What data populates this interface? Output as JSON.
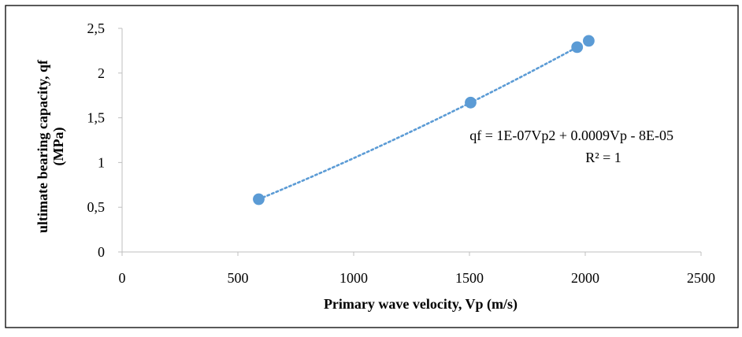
{
  "chart_data": {
    "type": "scatter",
    "title": "",
    "xlabel": "Primary wave velocity, Vp (m/s)",
    "ylabel_lines": [
      "ultimate bearing capacity, qf",
      "(MPa)"
    ],
    "xlim": [
      0,
      2500
    ],
    "ylim": [
      0,
      2.5
    ],
    "xticks": [
      0,
      500,
      1000,
      1500,
      2000,
      2500
    ],
    "xtick_labels": [
      "0",
      "500",
      "1000",
      "1500",
      "2000",
      "2500"
    ],
    "yticks": [
      0,
      0.5,
      1,
      1.5,
      2,
      2.5
    ],
    "ytick_labels": [
      "0",
      "0,5",
      "1",
      "1,5",
      "2",
      "2,5"
    ],
    "grid": false,
    "legend": "none",
    "series": [
      {
        "x": [
          590,
          1505,
          1965,
          2015
        ],
        "y": [
          0.59,
          1.67,
          2.29,
          2.36
        ],
        "color": "#5B9BD5"
      }
    ],
    "trendline": {
      "type": "polynomial",
      "degree": 2,
      "style": "dotted",
      "color": "#5B9BD5",
      "x_range": [
        590,
        1965
      ],
      "equation": "qf = 1E-07Vp2 + 0.0009Vp - 8E-05",
      "r_squared": "R² = 1"
    }
  }
}
